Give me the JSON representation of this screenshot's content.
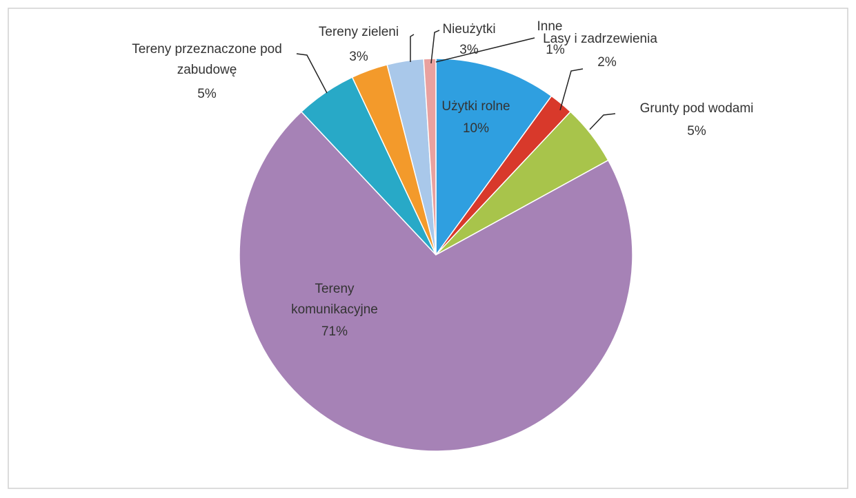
{
  "chart_data": {
    "type": "pie",
    "categories": [
      "Użytki rolne",
      "Lasy i zadrzewienia",
      "Grunty pod wodami",
      "Tereny komunikacyjne",
      "Tereny przeznaczone pod zabudowę",
      "Tereny zieleni",
      "Nieużytki",
      "Inne"
    ],
    "values": [
      10,
      2,
      5,
      71,
      5,
      3,
      3,
      1
    ],
    "value_labels": [
      "10%",
      "2%",
      "5%",
      "71%",
      "5%",
      "3%",
      "3%",
      "1%"
    ],
    "colors": [
      "#2f9fe0",
      "#d8392b",
      "#a8c44b",
      "#a682b6",
      "#28a9c7",
      "#f39a2b",
      "#a9c8ea",
      "#e9a19f"
    ]
  }
}
